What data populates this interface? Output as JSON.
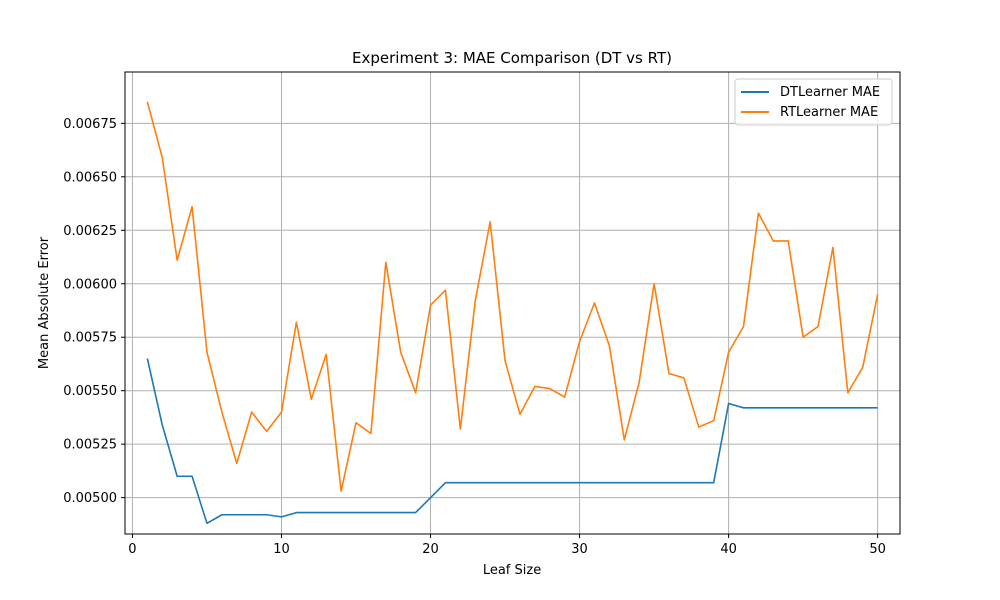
{
  "chart_data": {
    "type": "line",
    "title": "Experiment 3: MAE Comparison (DT vs RT)",
    "xlabel": "Leaf Size",
    "ylabel": "Mean Absolute Error",
    "xlim": [
      -0.5,
      51.5
    ],
    "ylim": [
      0.00483,
      0.00699
    ],
    "xticks": [
      0,
      10,
      20,
      30,
      40,
      50
    ],
    "xtick_labels": [
      "0",
      "10",
      "20",
      "30",
      "40",
      "50"
    ],
    "yticks": [
      0.005,
      0.00525,
      0.0055,
      0.00575,
      0.006,
      0.00625,
      0.0065,
      0.00675
    ],
    "ytick_labels": [
      "0.00500",
      "0.00525",
      "0.00550",
      "0.00575",
      "0.00600",
      "0.00625",
      "0.00650",
      "0.00675"
    ],
    "grid": true,
    "legend_position": "top-right",
    "x": [
      1,
      2,
      3,
      4,
      5,
      6,
      7,
      8,
      9,
      10,
      11,
      12,
      13,
      14,
      15,
      16,
      17,
      18,
      19,
      20,
      21,
      22,
      23,
      24,
      25,
      26,
      27,
      28,
      29,
      30,
      31,
      32,
      33,
      34,
      35,
      36,
      37,
      38,
      39,
      40,
      41,
      42,
      43,
      44,
      45,
      46,
      47,
      48,
      49,
      50
    ],
    "series": [
      {
        "name": "DTLearner MAE",
        "color": "#1f77b4",
        "values": [
          0.00565,
          0.00534,
          0.0051,
          0.0051,
          0.00488,
          0.00492,
          0.00492,
          0.00492,
          0.00492,
          0.00491,
          0.00493,
          0.00493,
          0.00493,
          0.00493,
          0.00493,
          0.00493,
          0.00493,
          0.00493,
          0.00493,
          0.005,
          0.00507,
          0.00507,
          0.00507,
          0.00507,
          0.00507,
          0.00507,
          0.00507,
          0.00507,
          0.00507,
          0.00507,
          0.00507,
          0.00507,
          0.00507,
          0.00507,
          0.00507,
          0.00507,
          0.00507,
          0.00507,
          0.00507,
          0.00544,
          0.00542,
          0.00542,
          0.00542,
          0.00542,
          0.00542,
          0.00542,
          0.00542,
          0.00542,
          0.00542,
          0.00542
        ]
      },
      {
        "name": "RTLearner MAE",
        "color": "#ff7f0e",
        "values": [
          0.00685,
          0.00659,
          0.00611,
          0.00636,
          0.00568,
          0.0054,
          0.00516,
          0.0054,
          0.00531,
          0.0054,
          0.00582,
          0.00546,
          0.00567,
          0.00503,
          0.00535,
          0.0053,
          0.0061,
          0.00568,
          0.00549,
          0.0059,
          0.00597,
          0.00532,
          0.00592,
          0.00629,
          0.00564,
          0.00539,
          0.00552,
          0.00551,
          0.00547,
          0.00573,
          0.00591,
          0.00571,
          0.00527,
          0.00554,
          0.006,
          0.00558,
          0.00556,
          0.00533,
          0.00536,
          0.00568,
          0.0058,
          0.00633,
          0.0062,
          0.0062,
          0.00575,
          0.0058,
          0.00617,
          0.00549,
          0.00561,
          0.00595
        ]
      }
    ]
  }
}
